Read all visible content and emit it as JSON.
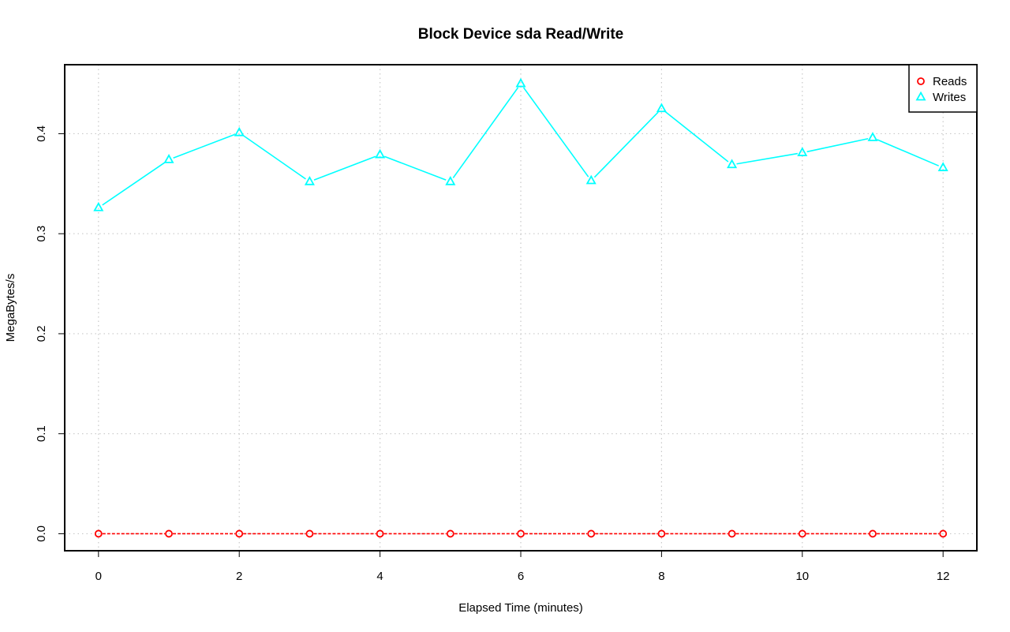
{
  "chart_data": {
    "type": "line",
    "title": "Block Device sda Read/Write",
    "xlabel": "Elapsed Time (minutes)",
    "ylabel": "MegaBytes/s",
    "x": [
      0,
      1,
      2,
      3,
      4,
      5,
      6,
      7,
      8,
      9,
      10,
      11,
      12
    ],
    "xlim": [
      -0.48,
      12.48
    ],
    "ylim": [
      -0.017,
      0.469
    ],
    "xticks": [
      0,
      2,
      4,
      6,
      8,
      10,
      12
    ],
    "yticks": [
      0.0,
      0.1,
      0.2,
      0.3,
      0.4
    ],
    "ytick_labels": [
      "0.0",
      "0.1",
      "0.2",
      "0.3",
      "0.4"
    ],
    "grid": true,
    "legend_position": "top-right",
    "series": [
      {
        "name": "Reads",
        "color": "#ff0000",
        "marker": "circle",
        "line_style": "dashed",
        "values": [
          0,
          0,
          0,
          0,
          0,
          0,
          0,
          0,
          0,
          0,
          0,
          0,
          0
        ]
      },
      {
        "name": "Writes",
        "color": "#00ffff",
        "marker": "triangle",
        "line_style": "solid",
        "values": [
          0.326,
          0.374,
          0.401,
          0.352,
          0.379,
          0.352,
          0.45,
          0.353,
          0.425,
          0.369,
          0.381,
          0.396,
          0.366
        ]
      }
    ]
  }
}
